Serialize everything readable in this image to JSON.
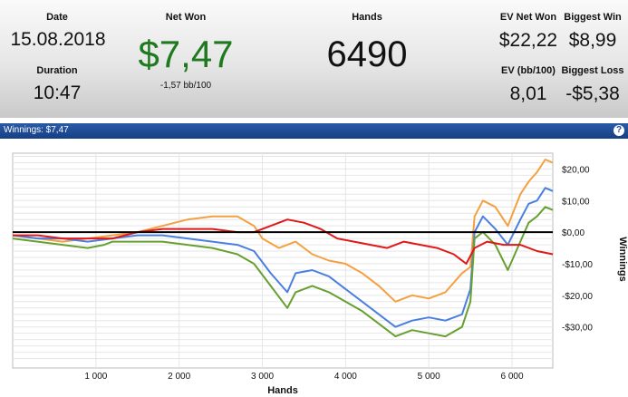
{
  "stats": {
    "date": {
      "label": "Date",
      "value": "15.08.2018"
    },
    "duration": {
      "label": "Duration",
      "value": "10:47"
    },
    "net_won": {
      "label": "Net Won",
      "value": "$7,47",
      "sub": "-1,57 bb/100"
    },
    "hands": {
      "label": "Hands",
      "value": "6490"
    },
    "ev_net_won": {
      "label": "EV Net Won",
      "value": "$22,22"
    },
    "biggest_win": {
      "label": "Biggest Win",
      "value": "$8,99"
    },
    "ev_bb100": {
      "label": "EV (bb/100)",
      "value": "8,01"
    },
    "biggest_loss": {
      "label": "Biggest Loss",
      "value": "-$5,38"
    }
  },
  "winnings_bar": {
    "label": "Winnings: $7,47",
    "help_icon": "question-icon"
  },
  "chart_data": {
    "type": "line",
    "xlabel": "Hands",
    "ylabel": "Winnings",
    "xlim": [
      0,
      6490
    ],
    "ylim": [
      -43,
      25
    ],
    "x_ticks": [
      1000,
      2000,
      3000,
      4000,
      5000,
      6000
    ],
    "x_tick_labels": [
      "1 000",
      "2 000",
      "3 000",
      "4 000",
      "5 000",
      "6 000"
    ],
    "y_ticks": [
      20,
      10,
      0,
      -10,
      -20,
      -30
    ],
    "y_tick_labels": [
      "$20,00",
      "$10,00",
      "$0,00",
      "-$10,00",
      "-$20,00",
      "-$30,00"
    ],
    "grid": true,
    "zero_line": true,
    "series": [
      {
        "color": "#f5a040",
        "points": [
          [
            0,
            -1
          ],
          [
            300,
            -2
          ],
          [
            600,
            -3
          ],
          [
            900,
            -2
          ],
          [
            1200,
            -1
          ],
          [
            1500,
            0
          ],
          [
            1800,
            2
          ],
          [
            2100,
            4
          ],
          [
            2400,
            5
          ],
          [
            2700,
            5
          ],
          [
            2900,
            2
          ],
          [
            3000,
            -2
          ],
          [
            3200,
            -5
          ],
          [
            3400,
            -3
          ],
          [
            3600,
            -7
          ],
          [
            3800,
            -9
          ],
          [
            4000,
            -10
          ],
          [
            4200,
            -13
          ],
          [
            4400,
            -17
          ],
          [
            4600,
            -22
          ],
          [
            4800,
            -20
          ],
          [
            5000,
            -21
          ],
          [
            5200,
            -19
          ],
          [
            5400,
            -13
          ],
          [
            5500,
            -11
          ],
          [
            5550,
            5
          ],
          [
            5650,
            10
          ],
          [
            5800,
            8
          ],
          [
            5950,
            2
          ],
          [
            6100,
            12
          ],
          [
            6200,
            16
          ],
          [
            6300,
            19
          ],
          [
            6400,
            23
          ],
          [
            6490,
            22
          ]
        ]
      },
      {
        "color": "#4a7fe0",
        "points": [
          [
            0,
            -1
          ],
          [
            300,
            -2
          ],
          [
            600,
            -2
          ],
          [
            900,
            -3
          ],
          [
            1200,
            -2
          ],
          [
            1500,
            -1
          ],
          [
            1800,
            -1
          ],
          [
            2100,
            -2
          ],
          [
            2400,
            -3
          ],
          [
            2700,
            -4
          ],
          [
            2900,
            -6
          ],
          [
            3100,
            -13
          ],
          [
            3300,
            -19
          ],
          [
            3400,
            -13
          ],
          [
            3600,
            -12
          ],
          [
            3800,
            -14
          ],
          [
            4000,
            -18
          ],
          [
            4200,
            -22
          ],
          [
            4400,
            -26
          ],
          [
            4600,
            -30
          ],
          [
            4800,
            -28
          ],
          [
            5000,
            -27
          ],
          [
            5200,
            -28
          ],
          [
            5400,
            -26
          ],
          [
            5500,
            -18
          ],
          [
            5550,
            0
          ],
          [
            5650,
            5
          ],
          [
            5800,
            1
          ],
          [
            5950,
            -4
          ],
          [
            6100,
            4
          ],
          [
            6200,
            9
          ],
          [
            6300,
            10
          ],
          [
            6400,
            14
          ],
          [
            6490,
            13
          ]
        ]
      },
      {
        "color": "#66a030",
        "points": [
          [
            0,
            -2
          ],
          [
            300,
            -3
          ],
          [
            600,
            -4
          ],
          [
            900,
            -5
          ],
          [
            1100,
            -4
          ],
          [
            1200,
            -3
          ],
          [
            1500,
            -3
          ],
          [
            1800,
            -3
          ],
          [
            2100,
            -4
          ],
          [
            2400,
            -5
          ],
          [
            2700,
            -7
          ],
          [
            2900,
            -10
          ],
          [
            3100,
            -17
          ],
          [
            3300,
            -24
          ],
          [
            3400,
            -19
          ],
          [
            3600,
            -17
          ],
          [
            3800,
            -19
          ],
          [
            4000,
            -22
          ],
          [
            4200,
            -25
          ],
          [
            4400,
            -29
          ],
          [
            4600,
            -33
          ],
          [
            4800,
            -31
          ],
          [
            5000,
            -32
          ],
          [
            5200,
            -33
          ],
          [
            5400,
            -30
          ],
          [
            5500,
            -22
          ],
          [
            5550,
            -2
          ],
          [
            5650,
            0
          ],
          [
            5800,
            -4
          ],
          [
            5950,
            -12
          ],
          [
            6100,
            -3
          ],
          [
            6200,
            3
          ],
          [
            6300,
            5
          ],
          [
            6400,
            8
          ],
          [
            6490,
            7
          ]
        ]
      },
      {
        "color": "#e01818",
        "points": [
          [
            0,
            -1
          ],
          [
            300,
            -1
          ],
          [
            600,
            -2
          ],
          [
            900,
            -2
          ],
          [
            1200,
            -2
          ],
          [
            1500,
            0
          ],
          [
            1800,
            1
          ],
          [
            2100,
            1
          ],
          [
            2400,
            1
          ],
          [
            2700,
            0
          ],
          [
            2900,
            0
          ],
          [
            3100,
            2
          ],
          [
            3300,
            4
          ],
          [
            3500,
            3
          ],
          [
            3700,
            1
          ],
          [
            3900,
            -2
          ],
          [
            4100,
            -3
          ],
          [
            4300,
            -4
          ],
          [
            4500,
            -5
          ],
          [
            4700,
            -3
          ],
          [
            4900,
            -4
          ],
          [
            5100,
            -5
          ],
          [
            5300,
            -7
          ],
          [
            5450,
            -10
          ],
          [
            5550,
            -5
          ],
          [
            5700,
            -3
          ],
          [
            5900,
            -4
          ],
          [
            6100,
            -4
          ],
          [
            6300,
            -6
          ],
          [
            6490,
            -7
          ]
        ]
      }
    ]
  }
}
